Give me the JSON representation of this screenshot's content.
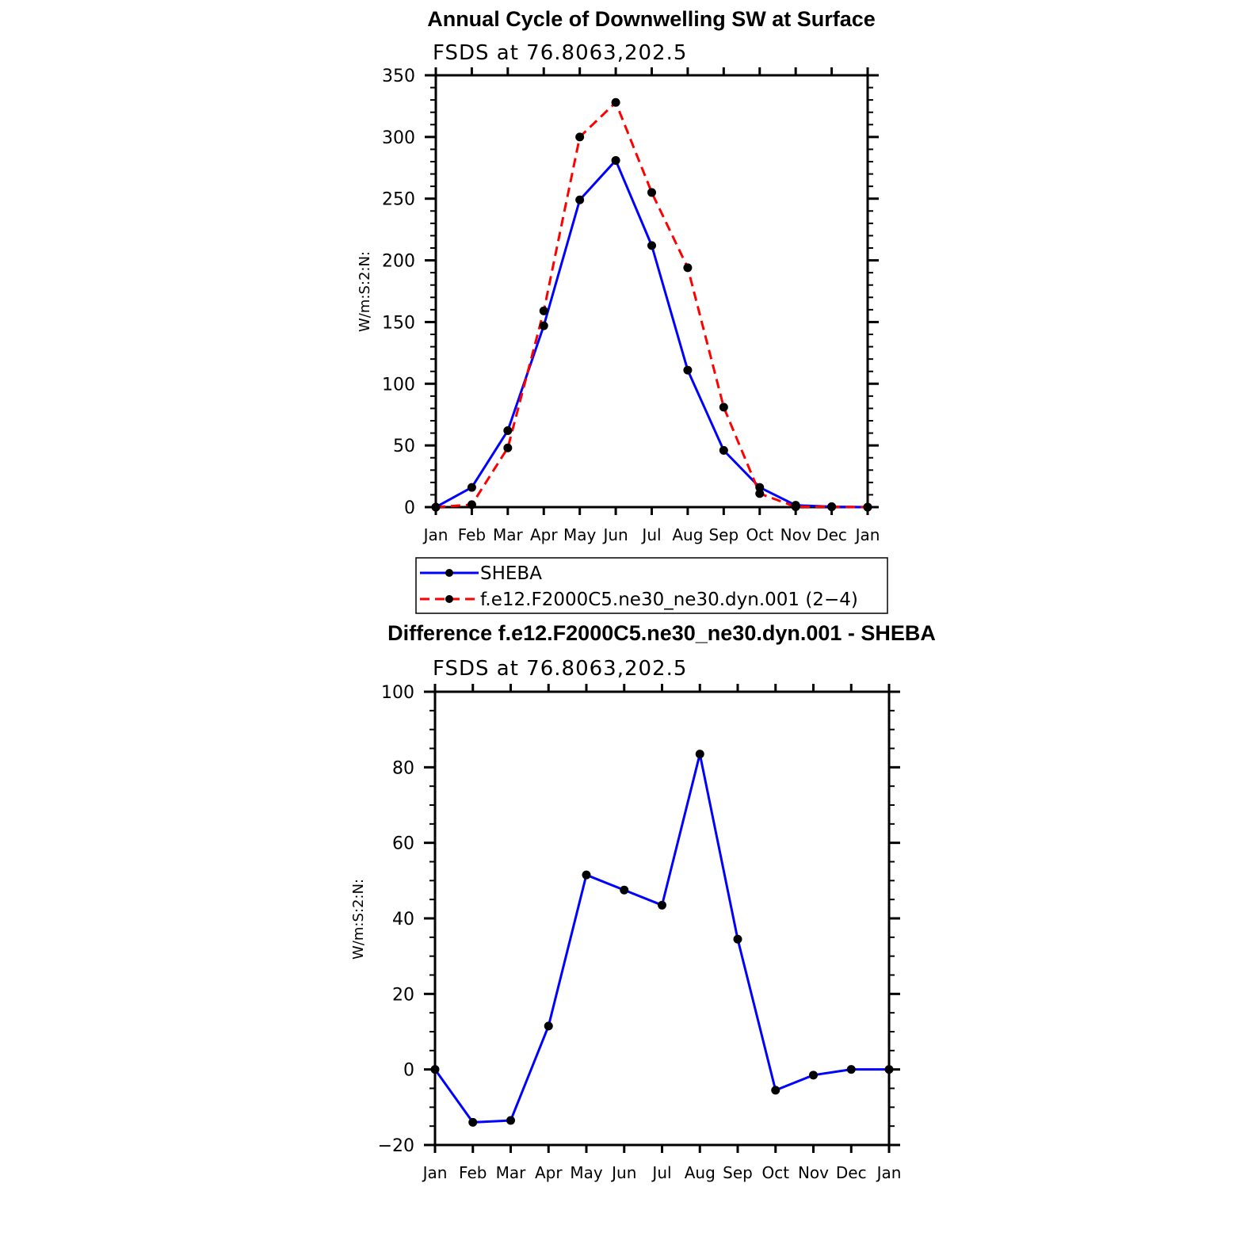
{
  "chart_data": [
    {
      "type": "line",
      "title": "Annual Cycle of Downwelling SW at Surface",
      "subtitle": "FSDS at 76.8063,202.5",
      "xlabel": "",
      "ylabel": "W/m:S:2:N:",
      "categories": [
        "Jan",
        "Feb",
        "Mar",
        "Apr",
        "May",
        "Jun",
        "Jul",
        "Aug",
        "Sep",
        "Oct",
        "Nov",
        "Dec",
        "Jan"
      ],
      "ylim": [
        0,
        350
      ],
      "yticks": [
        0,
        50,
        100,
        150,
        200,
        250,
        300,
        350
      ],
      "grid": false,
      "series": [
        {
          "name": "SHEBA",
          "color": "#0000ff",
          "dash": "solid",
          "values": [
            0,
            16,
            62,
            147,
            249,
            281,
            212,
            111,
            46,
            16,
            1.5,
            0.3,
            0
          ]
        },
        {
          "name": "f.e12.F2000C5.ne30_ne30.dyn.001 (2−4)",
          "color": "#ff0000",
          "dash": "dashed",
          "values": [
            0,
            2,
            48,
            159,
            300,
            328,
            255,
            194,
            81,
            11,
            0.3,
            0.3,
            0
          ]
        }
      ],
      "legend": "below"
    },
    {
      "type": "line",
      "title": "Difference f.e12.F2000C5.ne30_ne30.dyn.001 - SHEBA",
      "subtitle": "FSDS at 76.8063,202.5",
      "xlabel": "",
      "ylabel": "W/m:S:2:N:",
      "categories": [
        "Jan",
        "Feb",
        "Mar",
        "Apr",
        "May",
        "Jun",
        "Jul",
        "Aug",
        "Sep",
        "Oct",
        "Nov",
        "Dec",
        "Jan"
      ],
      "ylim": [
        -20,
        100
      ],
      "yticks": [
        -20,
        0,
        20,
        40,
        60,
        80,
        100
      ],
      "ytick_labels": [
        "−20",
        "0",
        "20",
        "40",
        "60",
        "80",
        "100"
      ],
      "grid": false,
      "series": [
        {
          "color": "#0000ff",
          "dash": "solid",
          "values": [
            0,
            -14,
            -13.5,
            11.5,
            51.5,
            47.5,
            43.5,
            83.5,
            34.5,
            -5.5,
            -1.5,
            0,
            0
          ]
        }
      ]
    }
  ]
}
